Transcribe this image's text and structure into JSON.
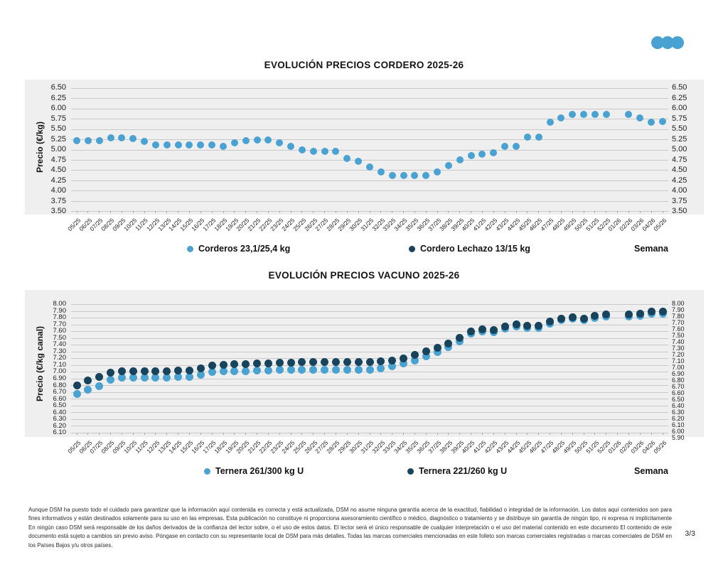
{
  "logo": {
    "icon": "three-dots-logo",
    "color": "#4AA2D3"
  },
  "page_number": "3/3",
  "disclaimer": "Aunque DSM ha puesto todo el cuidado para garantizar que la información aquí contenida es correcta y está actualizada, DSM no asume ninguna garantía acerca de la exactitud, fiabilidad o integridad de la información. Los datos aquí contenidos son para fines informativos y están destinados solamente para su uso en las empresas. Esta publicación no constituye ni proporciona asesoramiento científico o médico, diagnóstico o tratamiento y se distribuye sin garantía de ningún tipo, ni expresa ni implícitamente En ningún caso DSM será responsable de los daños derivados de la confianza del lector sobre, o el uso de estos datos. El lector será el único responsable de cualquier interpretación o el uso del material contenido en este documento El contenido de este documento está sujeto a cambios sin previo aviso. Póngase en contacto con su representante local de DSM para más detalles. Todas las marcas comerciales mencionadas en este folleto son marcas comerciales registradas o marcas comerciales de DSM en los Países Bajos y/u otros países.",
  "chart_data": [
    {
      "type": "scatter",
      "title": "EVOLUCIÓN PRECIOS CORDERO 2025-26",
      "ylabel": "Precio (€/kg)",
      "xlabel": "Semana",
      "ylim": [
        3.5,
        6.5
      ],
      "ytick_step": 0.25,
      "grid": true,
      "legend_position": "bottom",
      "yticks_left": [
        "6.50",
        "6.25",
        "6.00",
        "5.75",
        "5.50",
        "5.25",
        "5.00",
        "4.75",
        "4.50",
        "4.25",
        "4.00",
        "3.75",
        "3.50"
      ],
      "yticks_right": [
        "6.50",
        "6.25",
        "6.00",
        "5.75",
        "5.50",
        "5.25",
        "5.00",
        "4.75",
        "4.50",
        "4.25",
        "4.00",
        "3.75",
        "3.50"
      ],
      "categories": [
        "05/25",
        "06/25",
        "07/25",
        "08/25",
        "09/25",
        "10/25",
        "11/25",
        "12/25",
        "13/25",
        "14/25",
        "15/25",
        "16/25",
        "17/25",
        "18/25",
        "19/25",
        "20/25",
        "21/25",
        "22/25",
        "23/25",
        "24/25",
        "25/25",
        "26/25",
        "27/25",
        "28/25",
        "29/25",
        "30/25",
        "31/25",
        "32/25",
        "33/25",
        "34/25",
        "35/25",
        "36/25",
        "37/25",
        "38/25",
        "39/25",
        "40/25",
        "41/25",
        "42/25",
        "43/25",
        "44/25",
        "45/25",
        "46/25",
        "47/25",
        "48/25",
        "49/25",
        "50/25",
        "51/25",
        "52/25",
        "01/26",
        "02/26",
        "03/26",
        "04/26",
        "05/26"
      ],
      "series": [
        {
          "name": "Corderos 23,1/25,4 kg",
          "color": "#4AA2D3",
          "values": [
            5.22,
            5.21,
            5.21,
            5.28,
            5.29,
            5.27,
            5.2,
            5.11,
            5.11,
            5.11,
            5.11,
            5.11,
            5.11,
            5.07,
            5.17,
            5.22,
            5.24,
            5.23,
            5.17,
            5.08,
            5.0,
            4.95,
            4.95,
            4.95,
            4.79,
            4.72,
            4.58,
            4.45,
            4.37,
            4.37,
            4.37,
            4.37,
            4.45,
            4.61,
            4.75,
            4.85,
            4.88,
            4.92,
            5.07,
            5.08,
            5.3,
            5.31,
            5.67,
            5.78,
            5.85,
            5.85,
            5.85,
            5.85,
            null,
            5.86,
            5.78,
            5.67,
            5.68
          ]
        },
        {
          "name": "Cordero Lechazo 13/15 kg",
          "color": "#17435C",
          "values": []
        }
      ]
    },
    {
      "type": "scatter",
      "title": "EVOLUCIÓN PRECIOS VACUNO 2025-26",
      "ylabel": "Precio (€/kg canal)",
      "xlabel": "Semana",
      "ylim": [
        6.1,
        8.0
      ],
      "ytick_step": 0.1,
      "grid": true,
      "legend_position": "bottom",
      "yticks_left": [
        "8.00",
        "7.90",
        "7.80",
        "7.70",
        "7.60",
        "7.50",
        "7.40",
        "7.30",
        "7.20",
        "7.10",
        "7.00",
        "6.90",
        "6.80",
        "6.70",
        "6.60",
        "6.50",
        "6.40",
        "6.30",
        "6.20",
        "6.10"
      ],
      "yticks_right": [
        "8.00",
        "7.90",
        "7.80",
        "7.70",
        "7.60",
        "7.50",
        "7.40",
        "7.30",
        "7.20",
        "7.10",
        "7.00",
        "6.90",
        "6.80",
        "6.70",
        "6.60",
        "6.50",
        "6.40",
        "6.30",
        "6.20",
        "6.10",
        "6.00",
        "5.90"
      ],
      "categories": [
        "05/25",
        "06/25",
        "07/25",
        "08/25",
        "09/25",
        "10/25",
        "11/25",
        "12/25",
        "13/25",
        "14/25",
        "15/25",
        "16/25",
        "17/25",
        "18/25",
        "19/25",
        "20/25",
        "21/25",
        "22/25",
        "23/25",
        "24/25",
        "25/25",
        "26/25",
        "27/25",
        "28/25",
        "29/25",
        "30/25",
        "31/25",
        "32/25",
        "33/25",
        "34/25",
        "35/25",
        "36/25",
        "37/25",
        "38/25",
        "39/25",
        "40/25",
        "41/25",
        "42/25",
        "43/25",
        "44/25",
        "45/25",
        "46/25",
        "47/25",
        "48/25",
        "49/25",
        "50/25",
        "51/25",
        "52/25",
        "01/26",
        "02/26",
        "03/26",
        "04/26",
        "05/26"
      ],
      "series": [
        {
          "name": "Ternera 261/300 kg U",
          "color": "#4AA2D3",
          "values": [
            6.67,
            6.73,
            6.79,
            6.88,
            6.91,
            6.91,
            6.91,
            6.91,
            6.91,
            6.92,
            6.92,
            6.96,
            7.0,
            7.01,
            7.01,
            7.01,
            7.02,
            7.02,
            7.03,
            7.03,
            7.03,
            7.03,
            7.03,
            7.03,
            7.03,
            7.03,
            7.03,
            7.05,
            7.08,
            7.12,
            7.17,
            7.23,
            7.29,
            7.36,
            7.45,
            7.56,
            7.6,
            7.59,
            7.64,
            7.67,
            7.65,
            7.65,
            7.71,
            7.76,
            7.78,
            7.76,
            7.8,
            7.82,
            null,
            7.82,
            7.83,
            7.86,
            7.86
          ]
        },
        {
          "name": "Ternera 221/260 kg U",
          "color": "#17435C",
          "values": [
            6.8,
            6.87,
            6.92,
            6.99,
            7.01,
            7.01,
            7.01,
            7.01,
            7.01,
            7.02,
            7.02,
            7.05,
            7.09,
            7.1,
            7.11,
            7.11,
            7.12,
            7.12,
            7.13,
            7.13,
            7.14,
            7.14,
            7.14,
            7.14,
            7.14,
            7.14,
            7.14,
            7.15,
            7.17,
            7.2,
            7.25,
            7.3,
            7.35,
            7.42,
            7.5,
            7.6,
            7.63,
            7.62,
            7.67,
            7.7,
            7.68,
            7.68,
            7.74,
            7.79,
            7.81,
            7.79,
            7.83,
            7.85,
            null,
            7.85,
            7.86,
            7.89,
            7.89
          ]
        }
      ]
    }
  ]
}
